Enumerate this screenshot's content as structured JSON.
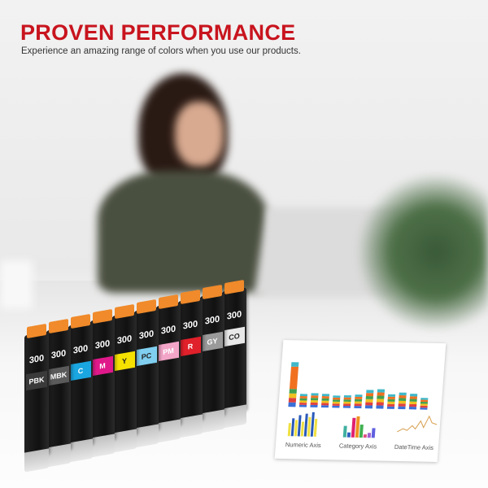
{
  "header": {
    "title": "PROVEN PERFORMANCE",
    "subtitle": "Experience an amazing range of colors when you use our products."
  },
  "cartridges": [
    {
      "model": "300",
      "label": "PBK",
      "color": "#3a3a3a"
    },
    {
      "model": "300",
      "label": "MBK",
      "color": "#5a5a5a"
    },
    {
      "model": "300",
      "label": "C",
      "color": "#1aa6e0"
    },
    {
      "model": "300",
      "label": "M",
      "color": "#e0198a"
    },
    {
      "model": "300",
      "label": "Y",
      "color": "#f5e000"
    },
    {
      "model": "300",
      "label": "PC",
      "color": "#80cff0"
    },
    {
      "model": "300",
      "label": "PM",
      "color": "#f3a5c8"
    },
    {
      "model": "300",
      "label": "R",
      "color": "#e0202a"
    },
    {
      "model": "300",
      "label": "GY",
      "color": "#9a9a9a"
    },
    {
      "model": "300",
      "label": "CO",
      "color": "#e8e8e8"
    }
  ],
  "paper": {
    "captions": [
      "Numeric Axis",
      "Category Axis",
      "DateTime Axis"
    ]
  },
  "colors": {
    "title": "#c8141e",
    "cap": "#f08a2a"
  }
}
